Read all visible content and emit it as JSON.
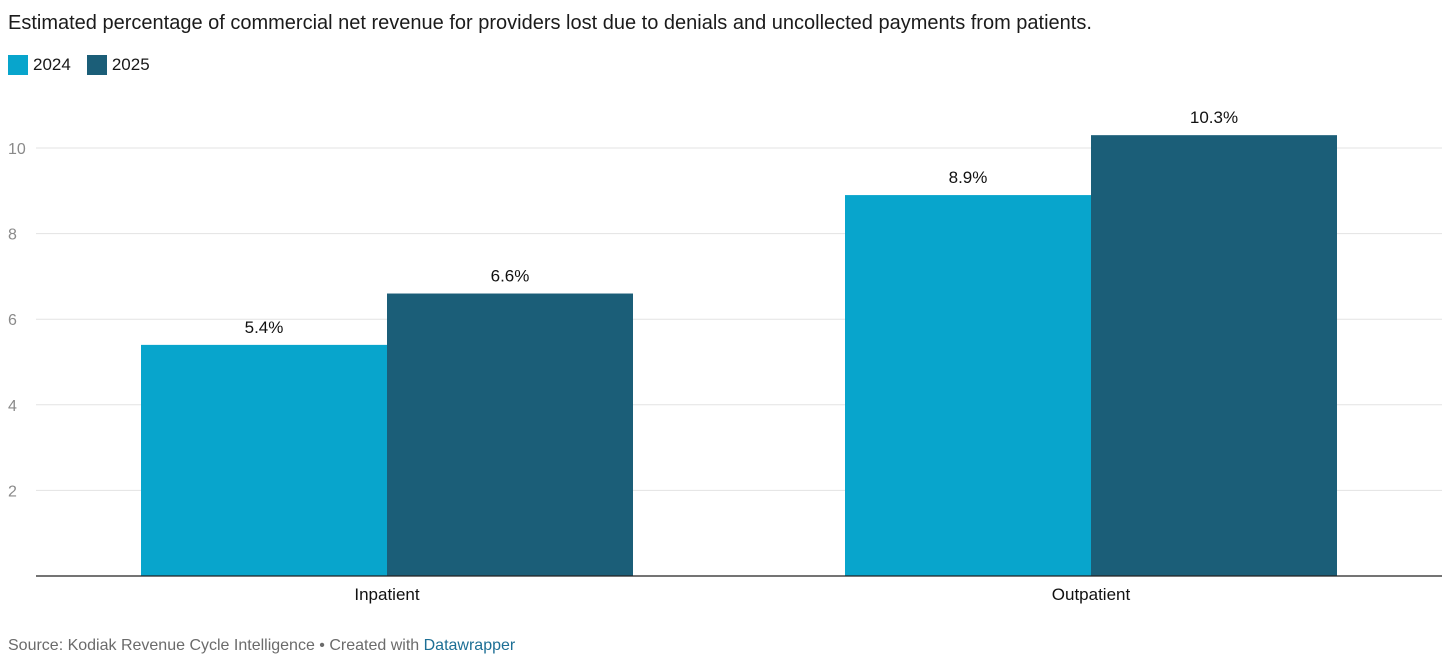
{
  "chart_data": {
    "type": "bar",
    "title": "Estimated percentage of commercial net revenue for providers lost due to denials and uncollected payments from patients.",
    "categories": [
      "Inpatient",
      "Outpatient"
    ],
    "series": [
      {
        "name": "2024",
        "values": [
          5.4,
          8.9
        ],
        "color": "#08a5cc",
        "labels": [
          "5.4%",
          "8.9%"
        ]
      },
      {
        "name": "2025",
        "values": [
          6.6,
          10.3
        ],
        "color": "#1b5e78",
        "labels": [
          "6.6%",
          "10.3%"
        ]
      }
    ],
    "yticks": [
      2,
      4,
      6,
      8,
      10
    ],
    "ylim": [
      0,
      11
    ],
    "grid": true,
    "legend_position": "top-left"
  },
  "footer": {
    "source": "Source: Kodiak Revenue Cycle Intelligence • Created with ",
    "link": "Datawrapper"
  }
}
